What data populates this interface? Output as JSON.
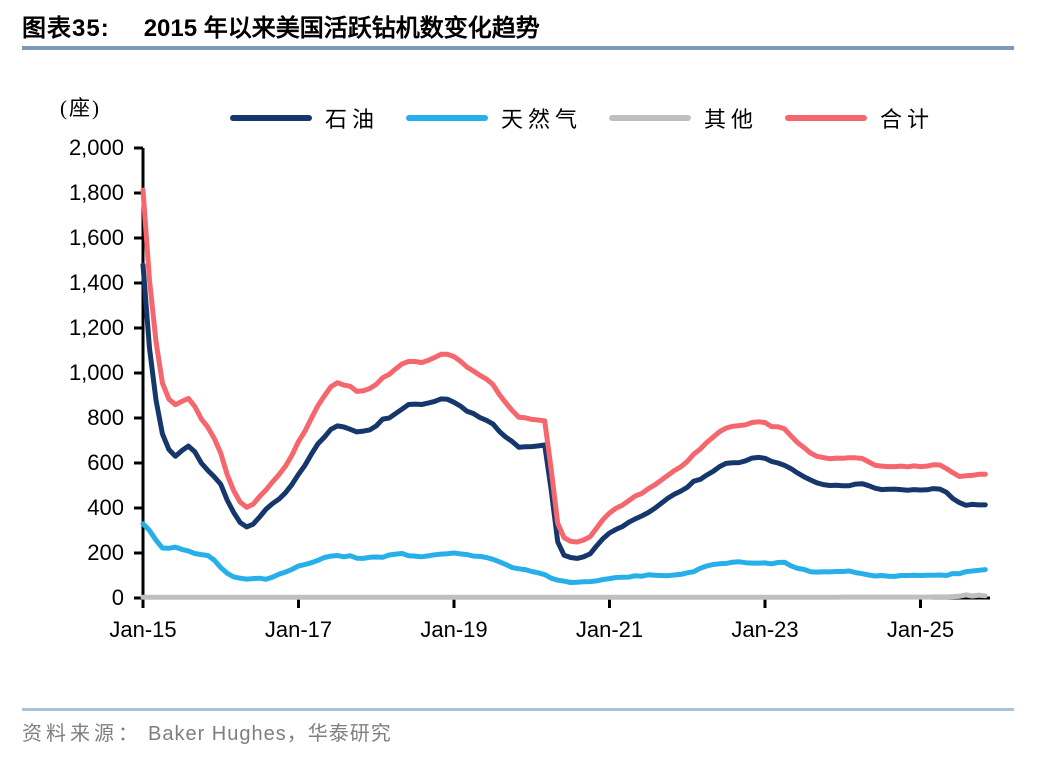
{
  "header": {
    "caption_label": "图表35:",
    "title": "2015 年以来美国活跃钻机数变化趋势"
  },
  "colors": {
    "title_rule": "#7E98BA",
    "footer_rule": "#A9C3DA",
    "axis": "#000000",
    "source_text": "#7F7F7F"
  },
  "chart_data": {
    "type": "line",
    "title": "2015 年以来美国活跃钻机数变化趋势",
    "unit_label": "(座)",
    "ylim": [
      0,
      2000
    ],
    "y_ticks": [
      0,
      200,
      400,
      600,
      800,
      1000,
      1200,
      1400,
      1600,
      1800,
      2000
    ],
    "y_tick_labels": [
      "0",
      "200",
      "400",
      "600",
      "800",
      "1,000",
      "1,200",
      "1,400",
      "1,600",
      "1,800",
      "2,000"
    ],
    "x_tick_labels": [
      "Jan-15",
      "Jan-17",
      "Jan-19",
      "Jan-21",
      "Jan-23",
      "Jan-25"
    ],
    "x_tick_month_index": [
      0,
      24,
      48,
      72,
      96,
      120
    ],
    "x_start": "2015-01",
    "x_end": "2025-11",
    "interval": "monthly",
    "grid": false,
    "legend_position": "top",
    "series": [
      {
        "key": "oil",
        "name": "石油",
        "color": "#16376B",
        "values": [
          1480,
          1110,
          880,
          730,
          660,
          630,
          655,
          675,
          650,
          600,
          567,
          538,
          505,
          435,
          380,
          335,
          316,
          328,
          360,
          395,
          420,
          440,
          468,
          505,
          550,
          590,
          640,
          685,
          715,
          750,
          765,
          760,
          750,
          738,
          742,
          747,
          765,
          795,
          800,
          820,
          840,
          860,
          862,
          860,
          866,
          874,
          885,
          883,
          870,
          853,
          830,
          820,
          802,
          790,
          774,
          740,
          715,
          695,
          670,
          672,
          673,
          676,
          680,
          480,
          250,
          190,
          180,
          176,
          183,
          196,
          231,
          264,
          289,
          305,
          318,
          337,
          352,
          365,
          380,
          399,
          421,
          443,
          461,
          475,
          492,
          519,
          527,
          546,
          563,
          584,
          598,
          601,
          602,
          610,
          622,
          625,
          621,
          607,
          600,
          590,
          575,
          556,
          539,
          525,
          512,
          504,
          500,
          501,
          499,
          499,
          506,
          508,
          499,
          488,
          482,
          483,
          484,
          482,
          479,
          482,
          480,
          481,
          486,
          484,
          470,
          442,
          424,
          412,
          416,
          414,
          414
        ]
      },
      {
        "key": "gas",
        "name": "天然气",
        "color": "#26AFE8",
        "values": [
          330,
          300,
          257,
          222,
          221,
          226,
          216,
          209,
          198,
          193,
          189,
          168,
          135,
          110,
          94,
          88,
          84,
          86,
          88,
          83,
          93,
          106,
          115,
          127,
          142,
          149,
          157,
          167,
          180,
          186,
          189,
          183,
          188,
          177,
          176,
          181,
          182,
          181,
          191,
          195,
          198,
          188,
          186,
          183,
          187,
          192,
          195,
          197,
          200,
          196,
          193,
          186,
          185,
          180,
          172,
          161,
          149,
          135,
          130,
          126,
          118,
          112,
          104,
          88,
          79,
          75,
          69,
          70,
          72,
          73,
          76,
          82,
          86,
          91,
          92,
          93,
          99,
          97,
          103,
          101,
          100,
          99,
          102,
          105,
          112,
          117,
          132,
          142,
          149,
          152,
          154,
          159,
          161,
          157,
          155,
          155,
          156,
          152,
          158,
          159,
          143,
          132,
          127,
          117,
          115,
          117,
          116,
          118,
          118,
          120,
          113,
          108,
          102,
          98,
          100,
          97,
          96,
          100,
          100,
          101,
          100,
          101,
          101,
          102,
          100,
          109,
          108,
          117,
          120,
          123,
          126
        ]
      },
      {
        "key": "other",
        "name": "其他",
        "color": "#BFBFBF",
        "values": [
          3,
          3,
          3,
          3,
          3,
          3,
          3,
          3,
          3,
          3,
          3,
          3,
          3,
          3,
          3,
          3,
          3,
          3,
          3,
          3,
          3,
          3,
          3,
          3,
          3,
          3,
          3,
          3,
          3,
          3,
          3,
          3,
          3,
          3,
          3,
          3,
          3,
          3,
          3,
          3,
          3,
          3,
          3,
          3,
          3,
          3,
          3,
          3,
          3,
          3,
          3,
          3,
          3,
          3,
          3,
          3,
          3,
          3,
          3,
          3,
          3,
          3,
          3,
          3,
          3,
          3,
          3,
          3,
          3,
          3,
          3,
          3,
          3,
          3,
          3,
          3,
          3,
          3,
          3,
          3,
          3,
          3,
          3,
          3,
          3,
          3,
          3,
          3,
          3,
          3,
          3,
          3,
          3,
          3,
          3,
          3,
          3,
          3,
          3,
          3,
          3,
          3,
          3,
          3,
          3,
          3,
          3,
          3,
          4,
          4,
          4,
          4,
          4,
          4,
          4,
          4,
          4,
          4,
          4,
          4,
          4,
          4,
          5,
          5,
          5,
          6,
          8,
          14,
          9,
          13,
          10
        ]
      },
      {
        "key": "total",
        "name": "合计",
        "color": "#F5666D",
        "values": [
          1813,
          1413,
          1140,
          955,
          884,
          859,
          874,
          887,
          851,
          796,
          759,
          709,
          643,
          548,
          477,
          426,
          403,
          417,
          451,
          481,
          516,
          549,
          586,
          635,
          695,
          742,
          800,
          855,
          898,
          939,
          957,
          946,
          941,
          918,
          921,
          931,
          950,
          979,
          994,
          1018,
          1041,
          1051,
          1051,
          1046,
          1056,
          1069,
          1083,
          1083,
          1073,
          1052,
          1026,
          1009,
          990,
          973,
          949,
          904,
          867,
          833,
          803,
          801,
          794,
          791,
          787,
          571,
          332,
          268,
          252,
          249,
          258,
          272,
          310,
          349,
          378,
          399,
          413,
          433,
          454,
          465,
          486,
          503,
          524,
          545,
          566,
          583,
          607,
          639,
          662,
          691,
          715,
          739,
          755,
          763,
          766,
          770,
          780,
          783,
          780,
          762,
          761,
          752,
          721,
          691,
          669,
          645,
          630,
          624,
          619,
          622,
          621,
          623,
          623,
          620,
          605,
          590,
          586,
          584,
          584,
          586,
          583,
          587,
          584,
          586,
          592,
          591,
          575,
          557,
          540,
          543,
          545,
          550,
          550
        ]
      }
    ]
  },
  "footer": {
    "source_prefix": "资料来源：",
    "source_text": "Baker Hughes，华泰研究"
  }
}
